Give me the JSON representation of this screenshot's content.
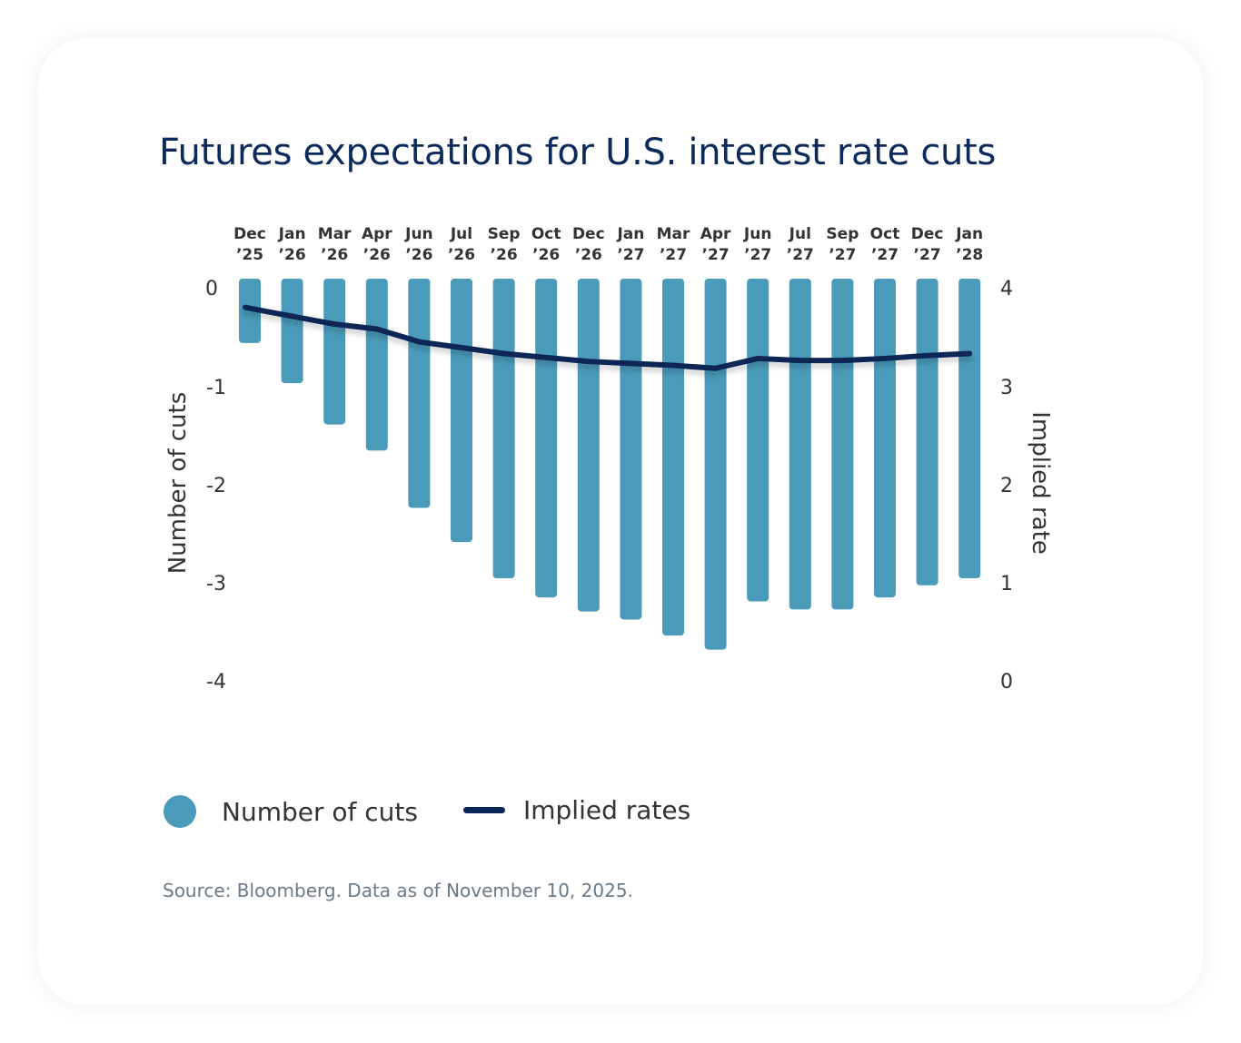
{
  "chart_data": {
    "type": "bar+line",
    "title": "Futures expectations for U.S. interest rate cuts",
    "categories": [
      [
        "Dec",
        "’25"
      ],
      [
        "Jan",
        "’26"
      ],
      [
        "Mar",
        "’26"
      ],
      [
        "Apr",
        "’26"
      ],
      [
        "Jun",
        "’26"
      ],
      [
        "Jul",
        "’26"
      ],
      [
        "Sep",
        "’26"
      ],
      [
        "Oct",
        "’26"
      ],
      [
        "Dec",
        "’26"
      ],
      [
        "Jan",
        "’27"
      ],
      [
        "Mar",
        "’27"
      ],
      [
        "Apr",
        "’27"
      ],
      [
        "Jun",
        "’27"
      ],
      [
        "Jul",
        "’27"
      ],
      [
        "Sep",
        "’27"
      ],
      [
        "Oct",
        "’27"
      ],
      [
        "Dec",
        "’27"
      ],
      [
        "Jan",
        "’28"
      ]
    ],
    "series": [
      {
        "name": "Number of cuts",
        "type": "bar",
        "axis": "left",
        "color": "#4a9aba",
        "values": [
          -0.64,
          -1.04,
          -1.45,
          -1.71,
          -2.28,
          -2.62,
          -2.98,
          -3.17,
          -3.31,
          -3.39,
          -3.55,
          -3.69,
          -3.21,
          -3.29,
          -3.29,
          -3.17,
          -3.05,
          -2.98
        ]
      },
      {
        "name": "Implied rates",
        "type": "line",
        "axis": "right",
        "color": "#0b2557",
        "values": [
          3.8,
          3.71,
          3.63,
          3.58,
          3.45,
          3.39,
          3.33,
          3.29,
          3.25,
          3.23,
          3.21,
          3.18,
          3.28,
          3.26,
          3.26,
          3.28,
          3.31,
          3.33
        ]
      }
    ],
    "ylabel_left": "Number of cuts",
    "ylabel_right": "Implied rate",
    "ylim_left": [
      -4,
      0
    ],
    "ylim_right": [
      0,
      4
    ],
    "yticks_left": [
      "0",
      "-1",
      "-2",
      "-3",
      "-4"
    ],
    "yticks_right": [
      "4",
      "3",
      "2",
      "1",
      "0"
    ],
    "x_axis_position": "top",
    "grid": false,
    "legend": "bottom-left"
  },
  "source": "Source: Bloomberg. Data as of November 10, 2025."
}
